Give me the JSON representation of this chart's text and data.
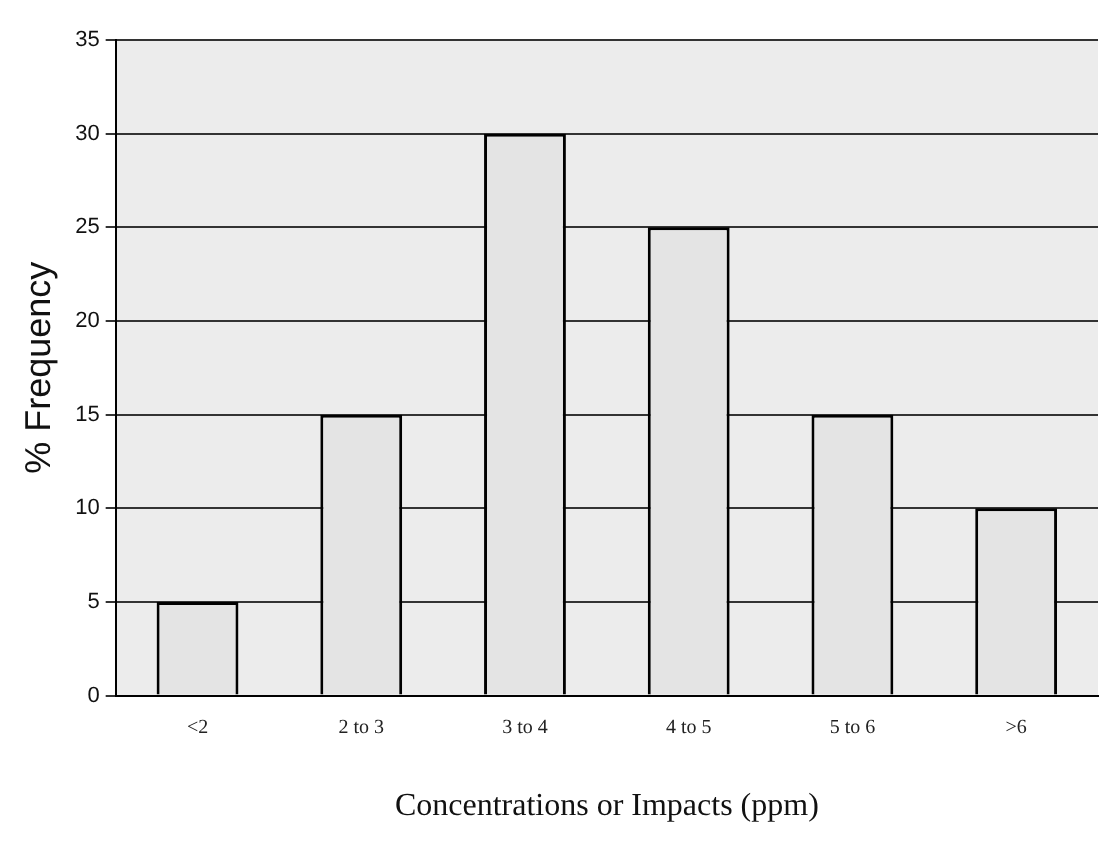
{
  "chart_data": {
    "type": "bar",
    "xlabel": "Concentrations or Impacts (ppm)",
    "ylabel": "% Frequency",
    "categories": [
      "<2",
      "2 to 3",
      "3 to 4",
      "4 to 5",
      "5 to 6",
      ">6"
    ],
    "values": [
      5,
      15,
      30,
      25,
      15,
      10
    ],
    "color": "#e4e4e4",
    "ylim": [
      0,
      35
    ],
    "yticks": [
      0,
      5,
      10,
      15,
      20,
      25,
      30,
      35
    ],
    "grid": "y"
  }
}
